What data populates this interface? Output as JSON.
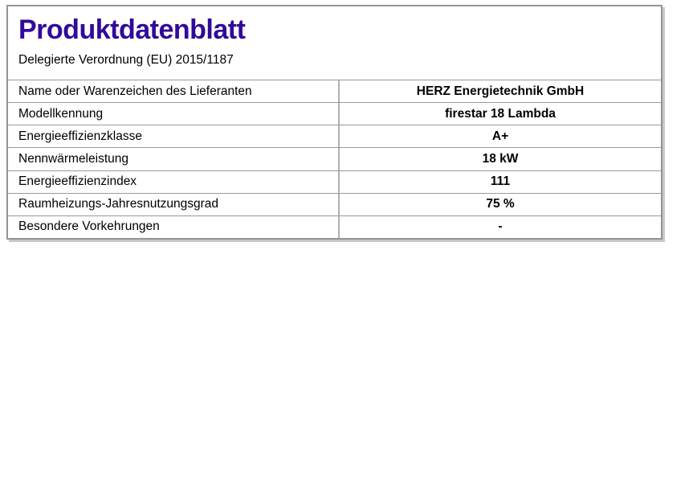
{
  "page": {
    "title": "Produktdatenblatt",
    "subtitle": "Delegierte Verordnung (EU) 2015/1187"
  },
  "table": {
    "rows": [
      {
        "label": "Name oder Warenzeichen des Lieferanten",
        "value": "HERZ Energietechnik GmbH"
      },
      {
        "label": "Modellkennung",
        "value": "firestar 18 Lambda"
      },
      {
        "label": "Energieeffizienzklasse",
        "value": "A+"
      },
      {
        "label": "Nennwärmeleistung",
        "value": "18 kW"
      },
      {
        "label": "Energieeffizienzindex",
        "value": "111"
      },
      {
        "label": "Raumheizungs-Jahresnutzungsgrad",
        "value": "75 %"
      },
      {
        "label": "Besondere Vorkehrungen",
        "value": "-"
      }
    ]
  },
  "colors": {
    "title": "#32099b",
    "outer_border": "#949494",
    "row_border": "#9a9a9a",
    "column_divider": "#b0b0b0",
    "shadow": "#c8c8c8",
    "background": "#ffffff"
  }
}
